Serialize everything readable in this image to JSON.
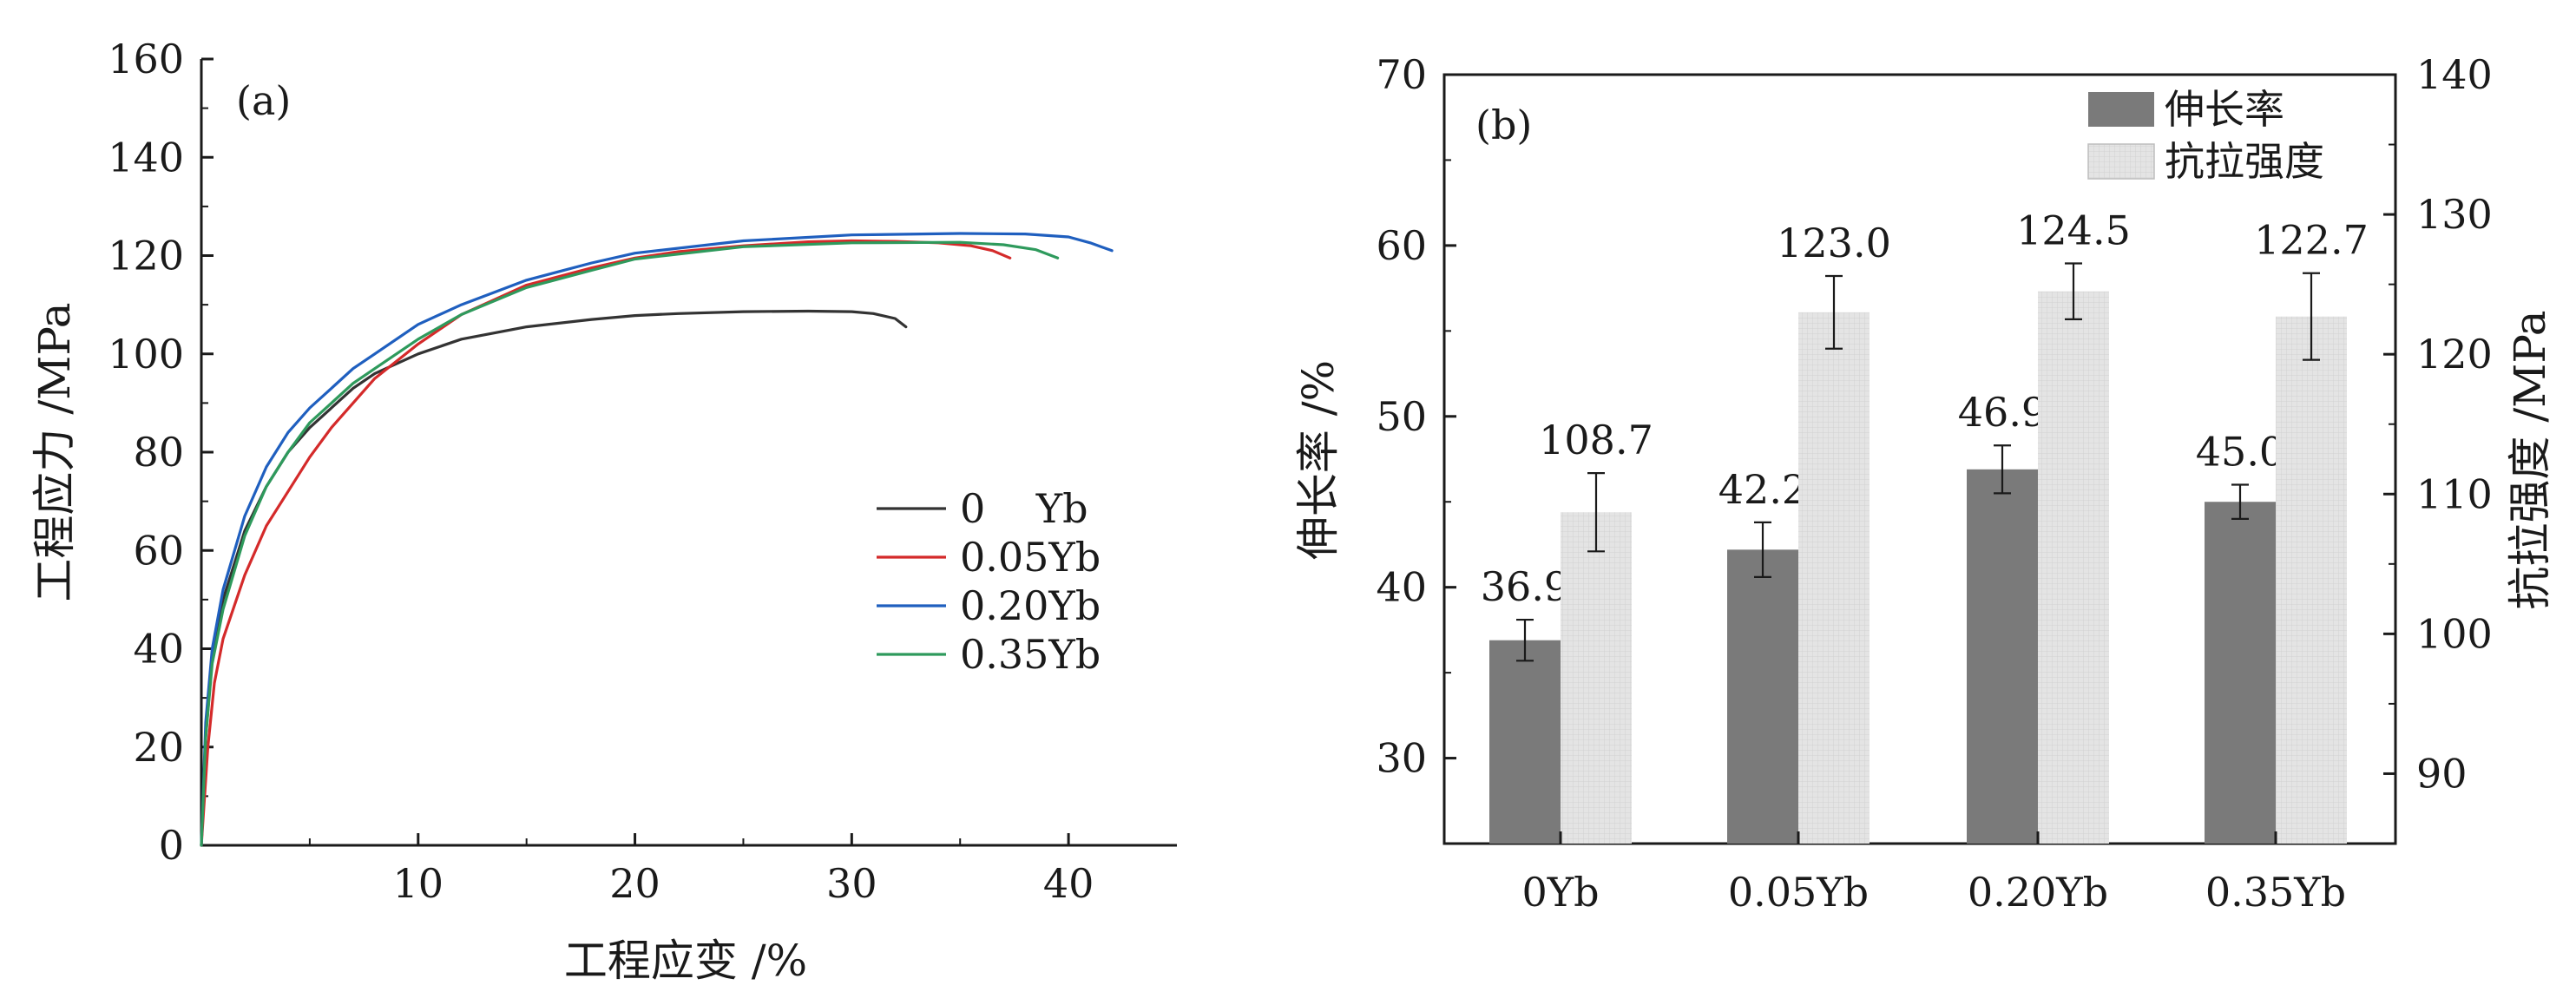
{
  "chart_data": [
    {
      "type": "line",
      "panel_label": "(a)",
      "xlabel": "工程应变 /%",
      "ylabel": "工程应力 /MPa",
      "xlim": [
        0,
        45
      ],
      "ylim": [
        0,
        160
      ],
      "xticks": [
        "10",
        "20",
        "30",
        "40"
      ],
      "yticks": [
        "0",
        "20",
        "40",
        "60",
        "80",
        "100",
        "120",
        "140",
        "160"
      ],
      "grid": false,
      "legend_position": "center-right",
      "series": [
        {
          "name": "0    Yb",
          "color": "#333333",
          "x": [
            0,
            0.2,
            0.5,
            1,
            2,
            3,
            4,
            5,
            6,
            7,
            8,
            10,
            12,
            15,
            18,
            20,
            22,
            25,
            28,
            30,
            31,
            32,
            32.5
          ],
          "y": [
            0,
            22,
            38,
            50,
            64,
            73,
            80,
            85,
            89,
            93,
            96,
            100,
            103,
            105.5,
            107,
            107.8,
            108.2,
            108.6,
            108.7,
            108.6,
            108.2,
            107.2,
            105.5
          ]
        },
        {
          "name": "0.05Yb",
          "color": "#d42a2a",
          "x": [
            0,
            0.3,
            0.6,
            1,
            2,
            3,
            4,
            5,
            6,
            7,
            8,
            10,
            12,
            15,
            18,
            20,
            22,
            25,
            28,
            30,
            32,
            34,
            35.5,
            36.5,
            37.3
          ],
          "y": [
            0,
            20,
            33,
            42,
            55,
            65,
            72,
            79,
            85,
            90,
            95,
            102,
            108,
            114,
            117.5,
            119.5,
            120.8,
            122,
            122.8,
            123,
            122.9,
            122.6,
            122,
            121,
            119.5
          ]
        },
        {
          "name": "0.20Yb",
          "color": "#1f5fbf",
          "x": [
            0,
            0.2,
            0.5,
            1,
            2,
            3,
            4,
            5,
            6,
            7,
            8,
            10,
            12,
            15,
            18,
            20,
            25,
            30,
            35,
            38,
            40,
            41,
            42
          ],
          "y": [
            0,
            25,
            40,
            52,
            67,
            77,
            84,
            89,
            93,
            97,
            100,
            106,
            110,
            115,
            118.5,
            120.5,
            123,
            124.2,
            124.5,
            124.4,
            123.8,
            122.6,
            121
          ]
        },
        {
          "name": "0.35Yb",
          "color": "#2e9a5c",
          "x": [
            0,
            0.2,
            0.5,
            1,
            2,
            3,
            4,
            5,
            6,
            7,
            8,
            10,
            12,
            15,
            18,
            20,
            25,
            30,
            35,
            37,
            38.5,
            39.5
          ],
          "y": [
            0,
            22,
            37,
            48,
            63,
            73,
            80,
            86,
            90,
            94,
            97,
            103,
            108,
            113.5,
            117,
            119.3,
            121.8,
            122.6,
            122.7,
            122.2,
            121.2,
            119.5
          ]
        }
      ]
    },
    {
      "type": "bar",
      "panel_label": "(b)",
      "categories": [
        "0Yb",
        "0.05Yb",
        "0.20Yb",
        "0.35Yb"
      ],
      "ylabel": "伸长率 /%",
      "y2label": "抗拉强度 /MPa",
      "ylim": [
        25,
        70
      ],
      "y2lim": [
        85,
        140
      ],
      "yticks": [
        "30",
        "40",
        "50",
        "60",
        "70"
      ],
      "y2ticks": [
        "90",
        "100",
        "110",
        "120",
        "130",
        "140"
      ],
      "grid": false,
      "legend_position": "top-right",
      "series": [
        {
          "name": "伸长率",
          "axis": "left",
          "color": "#7a7a7a",
          "values": [
            36.9,
            42.2,
            46.9,
            45.0
          ],
          "errors": [
            1.2,
            1.6,
            1.4,
            1.0
          ],
          "labels": [
            "36.9",
            "42.2",
            "46.9",
            "45.0"
          ]
        },
        {
          "name": "抗拉强度",
          "axis": "right",
          "color": "#e3e3e3",
          "values": [
            108.7,
            123.0,
            124.5,
            122.7
          ],
          "errors": [
            2.8,
            2.6,
            2.0,
            3.1
          ],
          "labels": [
            "108.7",
            "123.0",
            "124.5",
            "122.7"
          ]
        }
      ]
    }
  ]
}
